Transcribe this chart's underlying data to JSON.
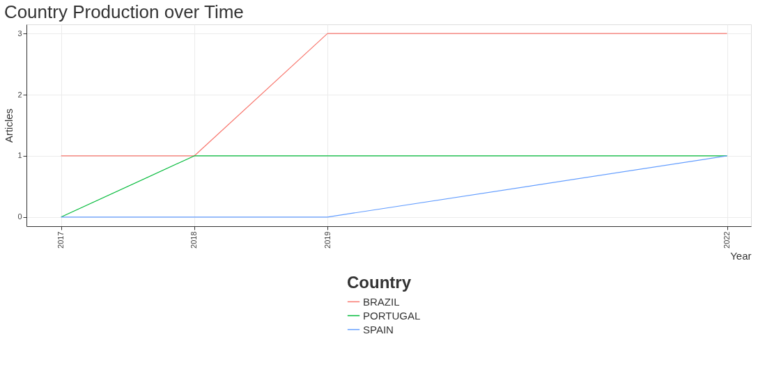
{
  "chart_data": {
    "type": "line",
    "title": "Country Production over Time",
    "xlabel": "Year",
    "ylabel": "Articles",
    "legend_title": "Country",
    "x": [
      2017,
      2018,
      2019,
      2022
    ],
    "series": [
      {
        "name": "BRAZIL",
        "color": "#f8766d",
        "values": [
          1,
          1,
          3,
          3
        ]
      },
      {
        "name": "PORTUGAL",
        "color": "#00ba38",
        "values": [
          0,
          1,
          1,
          1
        ]
      },
      {
        "name": "SPAIN",
        "color": "#619cff",
        "values": [
          0,
          0,
          0,
          1
        ]
      }
    ],
    "xlim": [
      2016.74,
      2022.18
    ],
    "xticks": [
      2017,
      2018,
      2019,
      2022
    ],
    "ylim": [
      -0.15,
      3.15
    ],
    "yticks": [
      0,
      1,
      2,
      3
    ],
    "grid": true,
    "legend": "bottom",
    "marker": "none",
    "line_style": "solid"
  }
}
